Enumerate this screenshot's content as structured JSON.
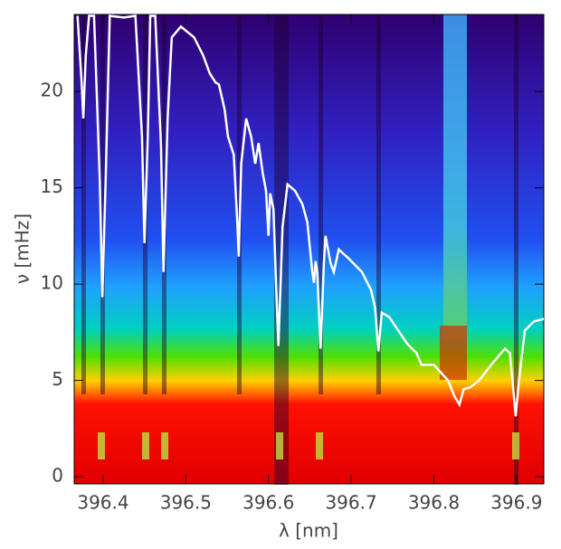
{
  "chart_data": {
    "type": "line",
    "xlabel": "λ [nm]",
    "ylabel": "ν [mHz]",
    "xlim": [
      396.365,
      396.933
    ],
    "ylim": [
      -0.37,
      24
    ],
    "xticks": [
      {
        "value": 396.4,
        "label": "396.4"
      },
      {
        "value": 396.5,
        "label": "396.5"
      },
      {
        "value": 396.6,
        "label": "396.6"
      },
      {
        "value": 396.7,
        "label": "396.7"
      },
      {
        "value": 396.8,
        "label": "396.8"
      },
      {
        "value": 396.9,
        "label": "396.9"
      }
    ],
    "yticks": [
      0,
      5,
      10,
      15,
      20
    ],
    "series": [
      {
        "color": "#ffffff",
        "x": [
          396.369,
          396.374,
          396.376,
          396.379,
          396.383,
          396.389,
          396.396,
          396.399,
          396.403,
          396.408,
          396.425,
          396.439,
          396.447,
          396.45,
          396.454,
          396.457,
          396.463,
          396.47,
          396.473,
          396.478,
          396.483,
          396.494,
          396.51,
          396.521,
          396.529,
          396.536,
          396.54,
          396.547,
          396.551,
          396.558,
          396.562,
          396.564,
          396.567,
          396.573,
          396.579,
          396.584,
          396.588,
          396.593,
          396.597,
          396.6,
          396.602,
          396.606,
          396.609,
          396.612,
          396.617,
          396.623,
          396.632,
          396.641,
          396.647,
          396.653,
          396.655,
          396.657,
          396.659,
          396.663,
          396.667,
          396.669,
          396.675,
          396.679,
          396.685,
          396.697,
          396.713,
          396.724,
          396.729,
          396.733,
          396.737,
          396.746,
          396.757,
          396.768,
          396.779,
          396.785,
          396.8,
          396.817,
          396.825,
          396.831,
          396.836,
          396.844,
          396.855,
          396.872,
          396.886,
          396.892,
          396.899,
          396.903,
          396.91,
          396.921,
          396.933
        ],
        "values": [
          23.93,
          20.47,
          18.6,
          21.87,
          23.93,
          23.93,
          15.32,
          9.32,
          15.32,
          23.93,
          23.84,
          23.93,
          17.66,
          12.13,
          17.66,
          23.93,
          23.93,
          17.19,
          10.63,
          18.6,
          22.81,
          23.37,
          22.81,
          21.87,
          20.94,
          20.47,
          20.37,
          19.06,
          17.66,
          16.72,
          13.44,
          11.43,
          16.25,
          18.6,
          17.66,
          16.25,
          17.33,
          15.78,
          14.85,
          12.51,
          14.71,
          13.91,
          10.16,
          6.79,
          12.97,
          15.18,
          14.85,
          14.15,
          13.21,
          10.63,
          10.07,
          11.19,
          10.63,
          6.65,
          11.1,
          12.51,
          11.1,
          10.63,
          11.8,
          11.33,
          10.63,
          9.7,
          8.76,
          6.51,
          8.52,
          8.29,
          7.59,
          6.89,
          6.42,
          5.81,
          5.81,
          5.01,
          4.17,
          3.75,
          4.54,
          4.64,
          5.01,
          5.95,
          6.65,
          6.42,
          3.14,
          5.01,
          7.59,
          8.06,
          8.2
        ]
      }
    ]
  }
}
